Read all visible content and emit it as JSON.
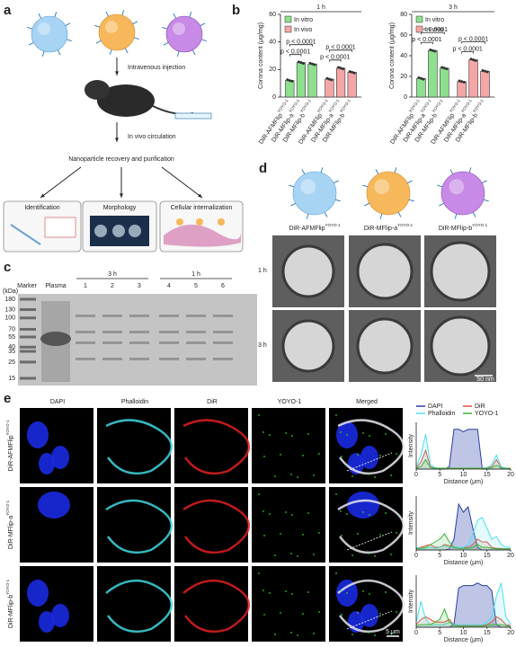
{
  "figure": {
    "panel_labels": [
      "a",
      "b",
      "c",
      "d",
      "e"
    ],
    "a": {
      "steps": [
        "Intravenous injection",
        "In vivo circulation",
        "Nanoparticle recovery and purification"
      ],
      "boxes": [
        "Identification",
        "Morphology",
        "Cellular internalization"
      ]
    },
    "c": {
      "lanes": [
        "Marker",
        "Plasma"
      ],
      "groups": [
        "3 h",
        "1 h"
      ],
      "lane_numbers": [
        "1",
        "2",
        "3",
        "4",
        "5",
        "6"
      ],
      "unit": "(kDa)",
      "markers": [
        180,
        130,
        100,
        70,
        55,
        40,
        35,
        25,
        15
      ]
    },
    "d": {
      "particles": [
        {
          "name": "DiR-AFMFlip",
          "sup": "YOYO-1"
        },
        {
          "name": "DiR-MFlip-a",
          "sup": "YOYO-1"
        },
        {
          "name": "DiR-MFlip-b",
          "sup": "YOYO-1"
        }
      ],
      "rows": [
        "1 h",
        "3 h"
      ],
      "scale": "50 nm"
    },
    "e": {
      "channels": [
        "DAPI",
        "Phalloidin",
        "DiR",
        "YOYO-1",
        "Merged"
      ],
      "rows": [
        {
          "name": "DiR-AFMFlip",
          "sup": "YOYO-1"
        },
        {
          "name": "DiR-MFlip-a",
          "sup": "YOYO-1"
        },
        {
          "name": "DiR-MFlip-b",
          "sup": "YOYO-1"
        }
      ],
      "scale": "5 μm"
    }
  },
  "chart_data": [
    {
      "type": "bar",
      "title": "1 h",
      "y_label": "Corona content (μg/mg)",
      "categories": [
        "DiR-AFMFlip",
        "DiR-MFlip-a",
        "DiR-MFlip-b"
      ],
      "category_superscripts": [
        "YOYO-1",
        "YOYO-1",
        "YOYO-1"
      ],
      "series": [
        {
          "name": "In vitro",
          "color": "#8ee08e",
          "values": [
            12,
            25,
            24
          ]
        },
        {
          "name": "In vivo",
          "color": "#f4a6a6",
          "values": [
            13,
            21,
            18
          ]
        }
      ],
      "ylim": [
        0,
        60
      ],
      "yticks": [
        0,
        20,
        40,
        60
      ],
      "annotations": [
        "p < 0.0001",
        "p < 0.0001",
        "p < 0.0001",
        "p < 0.0001"
      ]
    },
    {
      "type": "bar",
      "title": "3 h",
      "y_label": "Corona content (μg/mg)",
      "categories": [
        "DiR-AFMFlip",
        "DiR-MFlip-a",
        "DiR-MFlip-b"
      ],
      "category_superscripts": [
        "YOYO-1",
        "YOYO-1",
        "YOYO-1"
      ],
      "series": [
        {
          "name": "In vitro",
          "color": "#8ee08e",
          "values": [
            18,
            45,
            28
          ]
        },
        {
          "name": "In vivo",
          "color": "#f4a6a6",
          "values": [
            15,
            36,
            25
          ]
        }
      ],
      "ylim": [
        0,
        80
      ],
      "yticks": [
        0,
        20,
        40,
        60,
        80
      ],
      "annotations": [
        "p < 0.0001",
        "p < 0.0001",
        "p < 0.0001",
        "p < 0.0001"
      ]
    },
    {
      "type": "line",
      "x_label": "Distance (μm)",
      "y_label": "Intensity",
      "legend": true,
      "x": [
        0,
        1,
        2,
        3,
        4,
        5,
        6,
        7,
        8,
        9,
        10,
        11,
        12,
        13,
        14,
        15,
        16,
        17,
        18,
        19,
        20
      ],
      "xlim": [
        0,
        20
      ],
      "xticks": [
        0,
        5,
        10,
        15,
        20
      ],
      "ylim": [
        0,
        100
      ],
      "series": [
        {
          "name": "DAPI",
          "color": "#2a3fa8",
          "values": [
            0,
            0,
            0,
            0,
            0,
            0,
            0,
            5,
            85,
            85,
            80,
            85,
            85,
            85,
            0,
            0,
            0,
            0,
            0,
            0,
            0
          ]
        },
        {
          "name": "DiR",
          "color": "#e0503c",
          "values": [
            2,
            15,
            40,
            5,
            2,
            1,
            1,
            1,
            1,
            1,
            1,
            1,
            1,
            1,
            1,
            2,
            5,
            20,
            3,
            1,
            1
          ]
        },
        {
          "name": "Phalloidin",
          "color": "#4fe0ea",
          "values": [
            5,
            30,
            75,
            10,
            3,
            2,
            2,
            2,
            2,
            2,
            2,
            2,
            2,
            2,
            2,
            3,
            10,
            30,
            5,
            2,
            2
          ]
        },
        {
          "name": "YOYO-1",
          "color": "#3cb43c",
          "values": [
            2,
            5,
            20,
            3,
            2,
            2,
            2,
            2,
            2,
            2,
            2,
            2,
            2,
            2,
            2,
            2,
            3,
            8,
            2,
            2,
            2
          ]
        }
      ]
    },
    {
      "type": "line",
      "x_label": "Distance (μm)",
      "y_label": "Intensity",
      "legend": false,
      "x": [
        0,
        1,
        2,
        3,
        4,
        5,
        6,
        7,
        8,
        9,
        10,
        11,
        12,
        13,
        14,
        15,
        16,
        17,
        18,
        19,
        20
      ],
      "xlim": [
        0,
        20
      ],
      "xticks": [
        0,
        5,
        10,
        15,
        20
      ],
      "ylim": [
        0,
        100
      ],
      "series": [
        {
          "color": "#2a3fa8",
          "values": [
            0,
            0,
            0,
            0,
            0,
            0,
            0,
            2,
            20,
            85,
            70,
            80,
            40,
            5,
            0,
            0,
            0,
            0,
            0,
            0,
            0
          ]
        },
        {
          "color": "#e0503c",
          "values": [
            3,
            5,
            8,
            10,
            5,
            5,
            10,
            8,
            5,
            5,
            5,
            5,
            10,
            20,
            15,
            15,
            5,
            3,
            3,
            2,
            2
          ]
        },
        {
          "color": "#4fe0ea",
          "values": [
            5,
            3,
            3,
            5,
            3,
            5,
            8,
            5,
            5,
            5,
            5,
            10,
            30,
            55,
            60,
            40,
            20,
            25,
            10,
            5,
            5
          ]
        },
        {
          "color": "#3cb43c",
          "values": [
            2,
            3,
            5,
            10,
            15,
            20,
            30,
            15,
            5,
            3,
            3,
            3,
            5,
            10,
            5,
            5,
            3,
            2,
            2,
            2,
            2
          ]
        }
      ]
    },
    {
      "type": "line",
      "x_label": "Distance (μm)",
      "y_label": "Intensity",
      "legend": false,
      "x": [
        0,
        1,
        2,
        3,
        4,
        5,
        6,
        7,
        8,
        9,
        10,
        11,
        12,
        13,
        14,
        15,
        16,
        17,
        18,
        19,
        20
      ],
      "xlim": [
        0,
        20
      ],
      "xticks": [
        0,
        5,
        10,
        15,
        20
      ],
      "ylim": [
        0,
        100
      ],
      "series": [
        {
          "color": "#2a3fa8",
          "values": [
            0,
            0,
            0,
            0,
            0,
            0,
            0,
            0,
            5,
            75,
            80,
            80,
            80,
            85,
            80,
            80,
            70,
            5,
            0,
            0,
            0
          ]
        },
        {
          "color": "#e0503c",
          "values": [
            5,
            15,
            20,
            15,
            10,
            10,
            10,
            15,
            5,
            3,
            3,
            3,
            3,
            3,
            3,
            5,
            10,
            20,
            15,
            5,
            3
          ]
        },
        {
          "color": "#4fe0ea",
          "values": [
            10,
            50,
            15,
            5,
            5,
            5,
            5,
            10,
            5,
            5,
            5,
            5,
            5,
            5,
            5,
            10,
            20,
            60,
            85,
            20,
            5
          ]
        },
        {
          "color": "#3cb43c",
          "values": [
            3,
            5,
            5,
            5,
            10,
            15,
            35,
            10,
            3,
            2,
            2,
            2,
            2,
            2,
            2,
            3,
            5,
            5,
            5,
            3,
            2
          ]
        }
      ]
    }
  ]
}
